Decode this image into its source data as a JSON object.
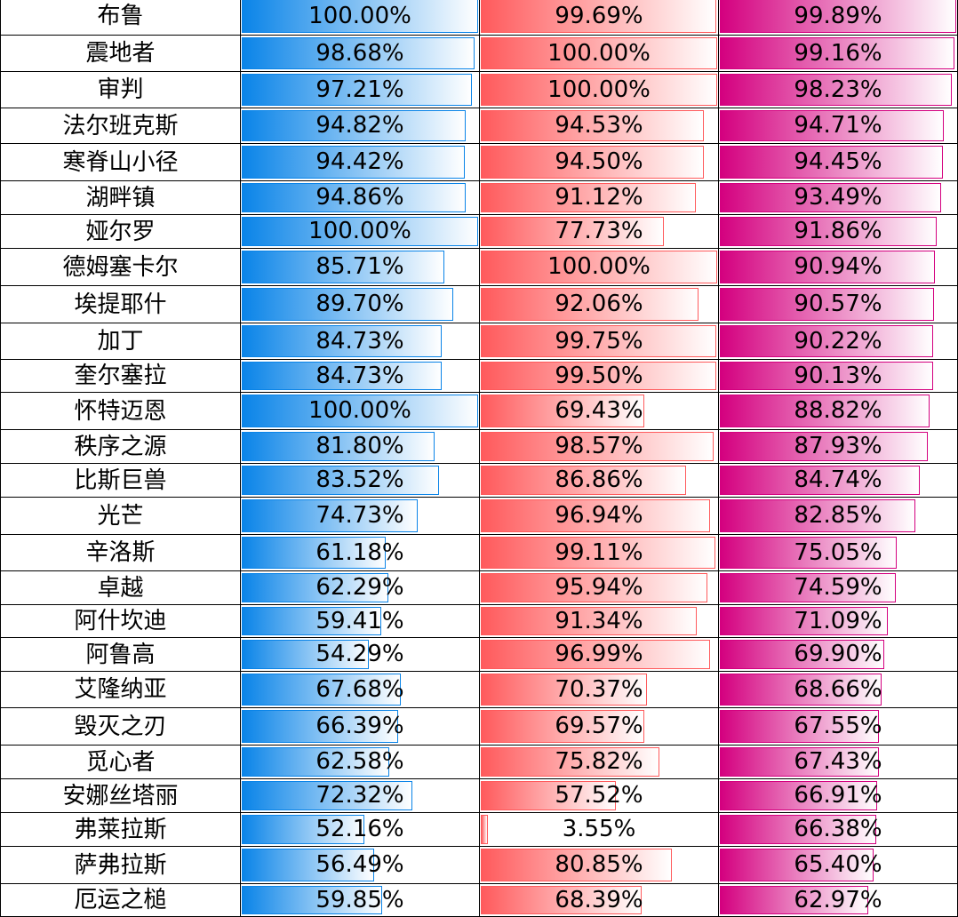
{
  "colors": {
    "blue_bar": "#0a84e8",
    "red_bar": "#ff5a5c",
    "pink_bar": "#d4007f",
    "grid": "#000000"
  },
  "rows": [
    {
      "name": "布鲁",
      "v1": "100.00%",
      "p1": 100.0,
      "v2": "99.69%",
      "p2": 99.69,
      "v3": "99.89%",
      "p3": 99.89
    },
    {
      "name": "震地者",
      "v1": "98.68%",
      "p1": 98.68,
      "v2": "100.00%",
      "p2": 100.0,
      "v3": "99.16%",
      "p3": 99.16
    },
    {
      "name": "审判",
      "v1": "97.21%",
      "p1": 97.21,
      "v2": "100.00%",
      "p2": 100.0,
      "v3": "98.23%",
      "p3": 98.23
    },
    {
      "name": "法尔班克斯",
      "v1": "94.82%",
      "p1": 94.82,
      "v2": "94.53%",
      "p2": 94.53,
      "v3": "94.71%",
      "p3": 94.71
    },
    {
      "name": "寒脊山小径",
      "v1": "94.42%",
      "p1": 94.42,
      "v2": "94.50%",
      "p2": 94.5,
      "v3": "94.45%",
      "p3": 94.45
    },
    {
      "name": "湖畔镇",
      "v1": "94.86%",
      "p1": 94.86,
      "v2": "91.12%",
      "p2": 91.12,
      "v3": "93.49%",
      "p3": 93.49
    },
    {
      "name": "娅尔罗",
      "v1": "100.00%",
      "p1": 100.0,
      "v2": "77.73%",
      "p2": 77.73,
      "v3": "91.86%",
      "p3": 91.86
    },
    {
      "name": "德姆塞卡尔",
      "v1": "85.71%",
      "p1": 85.71,
      "v2": "100.00%",
      "p2": 100.0,
      "v3": "90.94%",
      "p3": 90.94
    },
    {
      "name": "埃提耶什",
      "v1": "89.70%",
      "p1": 89.7,
      "v2": "92.06%",
      "p2": 92.06,
      "v3": "90.57%",
      "p3": 90.57
    },
    {
      "name": "加丁",
      "v1": "84.73%",
      "p1": 84.73,
      "v2": "99.75%",
      "p2": 99.75,
      "v3": "90.22%",
      "p3": 90.22
    },
    {
      "name": "奎尔塞拉",
      "v1": "84.73%",
      "p1": 84.73,
      "v2": "99.50%",
      "p2": 99.5,
      "v3": "90.13%",
      "p3": 90.13
    },
    {
      "name": "怀特迈恩",
      "v1": "100.00%",
      "p1": 100.0,
      "v2": "69.43%",
      "p2": 69.43,
      "v3": "88.82%",
      "p3": 88.82
    },
    {
      "name": "秩序之源",
      "v1": "81.80%",
      "p1": 81.8,
      "v2": "98.57%",
      "p2": 98.57,
      "v3": "87.93%",
      "p3": 87.93
    },
    {
      "name": "比斯巨兽",
      "v1": "83.52%",
      "p1": 83.52,
      "v2": "86.86%",
      "p2": 86.86,
      "v3": "84.74%",
      "p3": 84.74
    },
    {
      "name": "光芒",
      "v1": "74.73%",
      "p1": 74.73,
      "v2": "96.94%",
      "p2": 96.94,
      "v3": "82.85%",
      "p3": 82.85
    },
    {
      "name": "辛洛斯",
      "v1": "61.18%",
      "p1": 61.18,
      "v2": "99.11%",
      "p2": 99.11,
      "v3": "75.05%",
      "p3": 75.05
    },
    {
      "name": "卓越",
      "v1": "62.29%",
      "p1": 62.29,
      "v2": "95.94%",
      "p2": 95.94,
      "v3": "74.59%",
      "p3": 74.59
    },
    {
      "name": "阿什坎迪",
      "v1": "59.41%",
      "p1": 59.41,
      "v2": "91.34%",
      "p2": 91.34,
      "v3": "71.09%",
      "p3": 71.09
    },
    {
      "name": "阿鲁高",
      "v1": "54.29%",
      "p1": 54.29,
      "v2": "96.99%",
      "p2": 96.99,
      "v3": "69.90%",
      "p3": 69.9
    },
    {
      "name": "艾隆纳亚",
      "v1": "67.68%",
      "p1": 67.68,
      "v2": "70.37%",
      "p2": 70.37,
      "v3": "68.66%",
      "p3": 68.66
    },
    {
      "name": "毁灭之刃",
      "v1": "66.39%",
      "p1": 66.39,
      "v2": "69.57%",
      "p2": 69.57,
      "v3": "67.55%",
      "p3": 67.55
    },
    {
      "name": "觅心者",
      "v1": "62.58%",
      "p1": 62.58,
      "v2": "75.82%",
      "p2": 75.82,
      "v3": "67.43%",
      "p3": 67.43
    },
    {
      "name": "安娜丝塔丽",
      "v1": "72.32%",
      "p1": 72.32,
      "v2": "57.52%",
      "p2": 57.52,
      "v3": "66.91%",
      "p3": 66.91
    },
    {
      "name": "弗莱拉斯",
      "v1": "52.16%",
      "p1": 52.16,
      "v2": "3.55%",
      "p2": 3.55,
      "v3": "66.38%",
      "p3": 66.38
    },
    {
      "name": "萨弗拉斯",
      "v1": "56.49%",
      "p1": 56.49,
      "v2": "80.85%",
      "p2": 80.85,
      "v3": "65.40%",
      "p3": 65.4
    },
    {
      "name": "厄运之槌",
      "v1": "59.85%",
      "p1": 59.85,
      "v2": "68.39%",
      "p2": 68.39,
      "v3": "62.97%",
      "p3": 62.97
    }
  ]
}
